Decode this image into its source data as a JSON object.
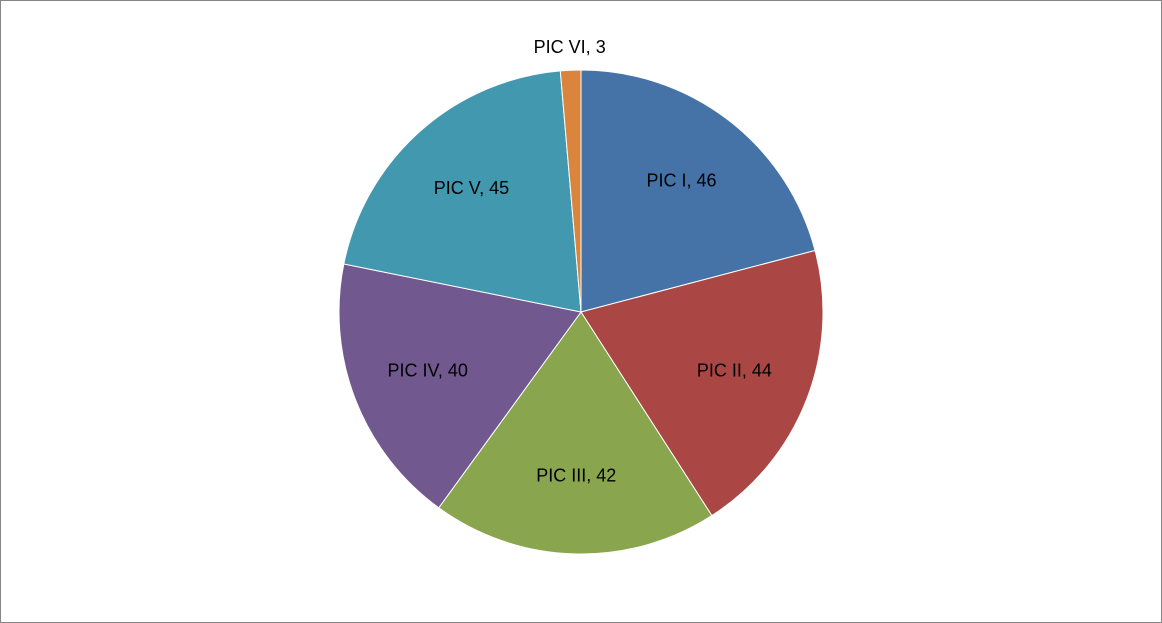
{
  "chart_data": {
    "type": "pie",
    "categories": [
      "PIC I",
      "PIC II",
      "PIC III",
      "PIC IV",
      "PIC V",
      "PIC VI"
    ],
    "values": [
      46,
      44,
      42,
      40,
      45,
      3
    ],
    "colors": [
      "#4572A7",
      "#AA4643",
      "#89A54E",
      "#71588F",
      "#4198AF",
      "#DB843D"
    ]
  }
}
